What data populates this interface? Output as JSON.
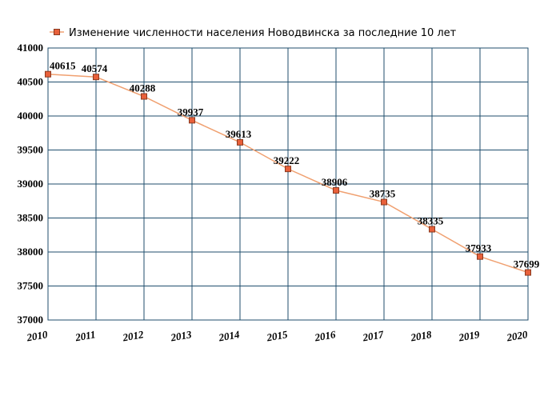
{
  "chart_data": {
    "type": "line",
    "title": "",
    "xlabel": "",
    "ylabel": "",
    "legend": {
      "position": "top",
      "entries": [
        "Изменение численности населения Новодвинска за последние 10 лет"
      ]
    },
    "x": [
      "2010",
      "2011",
      "2012",
      "2013",
      "2014",
      "2015",
      "2016",
      "2017",
      "2018",
      "2019",
      "2020"
    ],
    "series": [
      {
        "name": "Изменение численности населения Новодвинска за последние 10 лет",
        "values": [
          40615,
          40574,
          40288,
          39937,
          39613,
          39222,
          38906,
          38735,
          38335,
          37933,
          37699
        ],
        "labels": [
          "40615",
          "40574",
          "40288",
          "39937",
          "39613",
          "39222",
          "38906",
          "38735",
          "38335",
          "37933",
          "37699"
        ]
      }
    ],
    "ylim": [
      37000,
      41000
    ],
    "yticks": [
      "37000",
      "37500",
      "38000",
      "38500",
      "39000",
      "39500",
      "40000",
      "40500",
      "41000"
    ],
    "grid": true,
    "colors": {
      "line": "#f0a070",
      "marker_fill": "#e8603a",
      "marker_stroke": "#8b3a20",
      "grid": "#1f4e6e"
    }
  }
}
